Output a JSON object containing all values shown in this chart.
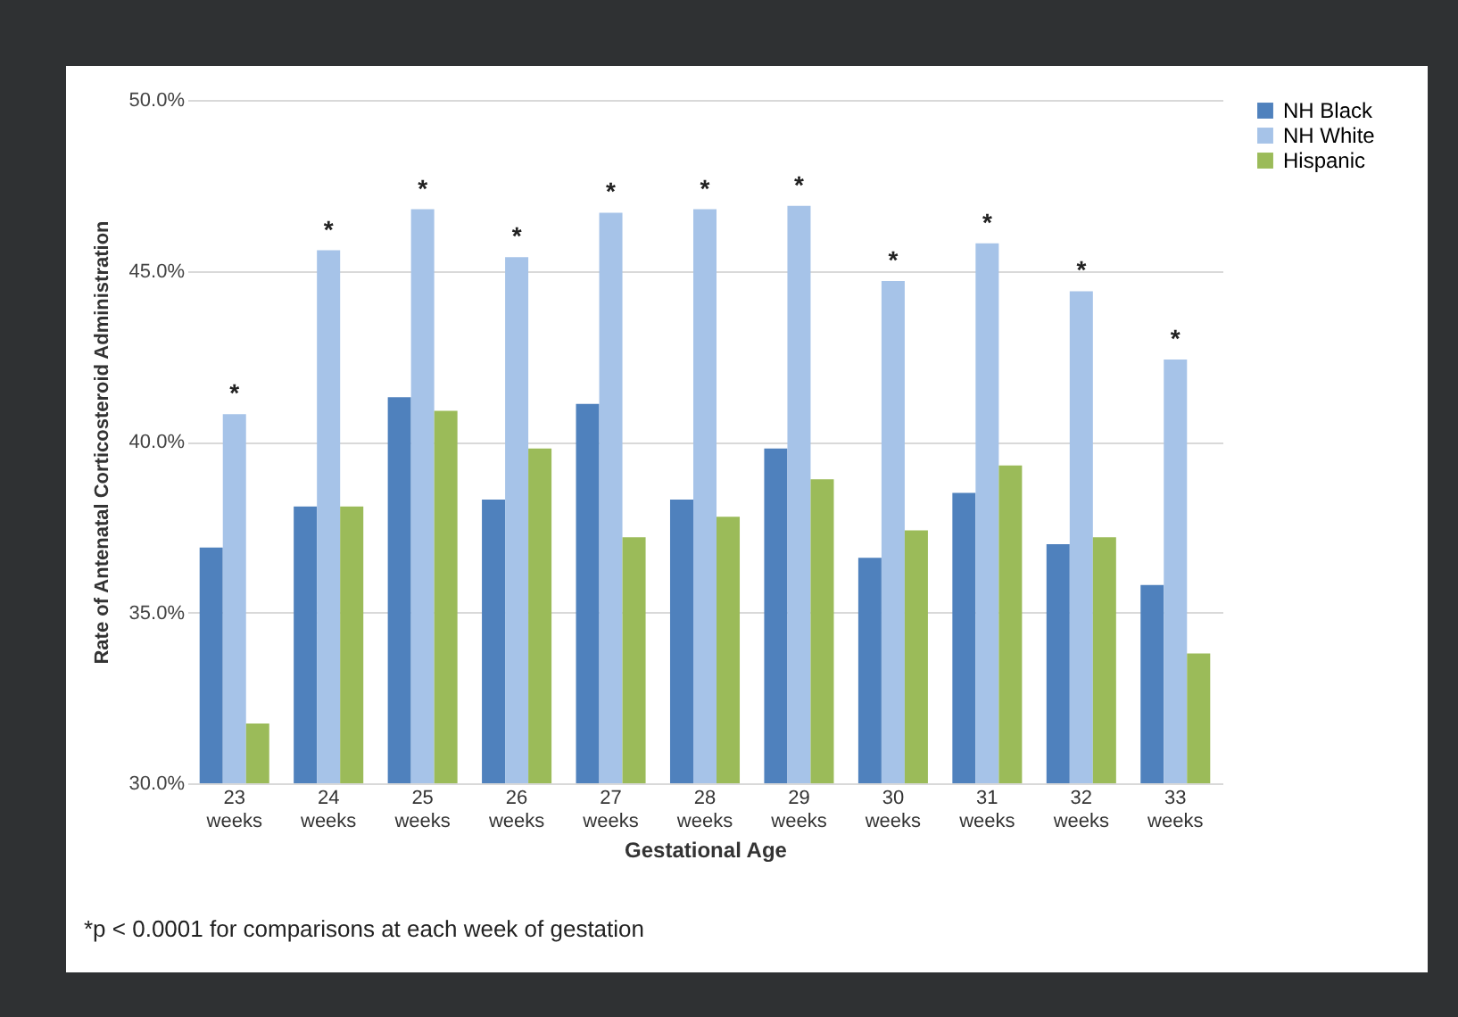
{
  "chart_data": {
    "type": "bar",
    "xlabel": "Gestational Age",
    "ylabel": "Rate of Antenatal Corticosteroid Administration",
    "categories": [
      "23 weeks",
      "24 weeks",
      "25 weeks",
      "26 weeks",
      "27 weeks",
      "28 weeks",
      "29 weeks",
      "30 weeks",
      "31 weeks",
      "32 weeks",
      "33 weeks"
    ],
    "series": [
      {
        "name": "NH Black",
        "color": "#4f81bd",
        "values": [
          36.9,
          38.1,
          41.3,
          38.3,
          41.1,
          38.3,
          39.8,
          36.6,
          38.5,
          37.0,
          35.8
        ]
      },
      {
        "name": "NH White",
        "color": "#a6c3e8",
        "values": [
          40.8,
          45.6,
          46.8,
          45.4,
          46.7,
          46.8,
          46.9,
          44.7,
          45.8,
          44.4,
          42.4
        ]
      },
      {
        "name": "Hispanic",
        "color": "#9bbb59",
        "values": [
          31.75,
          38.1,
          40.9,
          39.8,
          37.2,
          37.8,
          38.9,
          37.4,
          39.3,
          37.2,
          33.8
        ]
      }
    ],
    "ylim": [
      30,
      50
    ],
    "yticks": [
      {
        "value": 30,
        "label": "30.0%"
      },
      {
        "value": 35,
        "label": "35.0%"
      },
      {
        "value": 40,
        "label": "40.0%"
      },
      {
        "value": 45,
        "label": "45.0%"
      },
      {
        "value": 50,
        "label": "50.0%"
      }
    ],
    "grid": "y",
    "legend": "right",
    "annotations": [
      "*",
      "*",
      "*",
      "*",
      "*",
      "*",
      "*",
      "*",
      "*",
      "*",
      "*",
      "*p < 0.0001 for comparisons at each week of gestation"
    ]
  }
}
